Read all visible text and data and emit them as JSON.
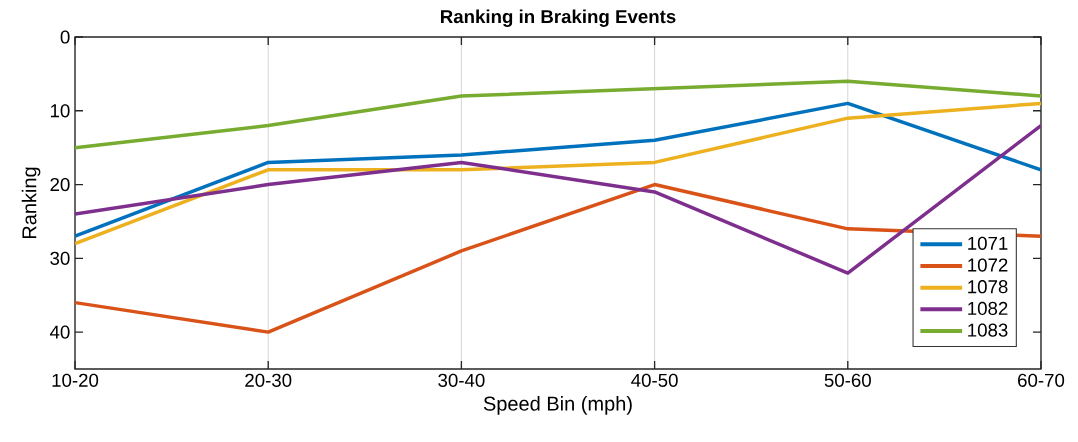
{
  "chart_data": {
    "type": "line",
    "title": "Ranking in Braking Events",
    "xlabel": "Speed Bin (mph)",
    "ylabel": "Ranking",
    "categories": [
      "10-20",
      "20-30",
      "30-40",
      "40-50",
      "50-60",
      "60-70"
    ],
    "ylim": [
      45,
      0
    ],
    "yticks": [
      0,
      10,
      20,
      30,
      40
    ],
    "grid": "x",
    "legend": "bottom right",
    "series": [
      {
        "name": "1071",
        "color": "#0072bd",
        "values": [
          27,
          17,
          16,
          14,
          9,
          18
        ]
      },
      {
        "name": "1072",
        "color": "#d95319",
        "values": [
          36,
          40,
          29,
          20,
          26,
          27
        ]
      },
      {
        "name": "1078",
        "color": "#edb120",
        "values": [
          28,
          18,
          18,
          17,
          11,
          9
        ]
      },
      {
        "name": "1082",
        "color": "#7e2f8e",
        "values": [
          24,
          20,
          17,
          21,
          32,
          12
        ]
      },
      {
        "name": "1083",
        "color": "#77ac30",
        "values": [
          15,
          12,
          8,
          7,
          6,
          8
        ]
      }
    ]
  }
}
